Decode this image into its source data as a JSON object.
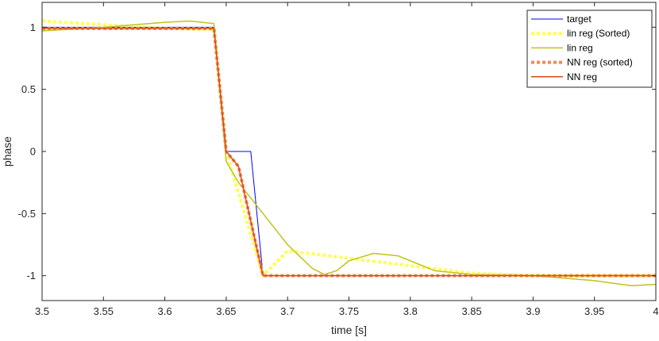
{
  "chart_data": {
    "type": "line",
    "xlabel": "time [s]",
    "ylabel": "phase",
    "xlim": [
      3.5,
      4.0
    ],
    "ylim": [
      -1.2,
      1.2
    ],
    "xticks": [
      3.5,
      3.55,
      3.6,
      3.65,
      3.7,
      3.75,
      3.8,
      3.85,
      3.9,
      3.95,
      4.0
    ],
    "xtick_labels": [
      "3.5",
      "3.55",
      "3.6",
      "3.65",
      "3.7",
      "3.75",
      "3.8",
      "3.85",
      "3.9",
      "3.95",
      "4"
    ],
    "yticks": [
      1,
      0.5,
      0,
      -0.5,
      -1
    ],
    "ytick_labels": [
      "1",
      "0.5",
      "0",
      "-0.5",
      "-1"
    ],
    "grid": false,
    "legend_position": "top-right",
    "series": [
      {
        "name": "target",
        "color": "#0000ff",
        "style": "solid",
        "width": 1,
        "x": [
          3.5,
          3.64,
          3.65,
          3.67,
          3.68,
          4.0
        ],
        "y": [
          1,
          1,
          0,
          0,
          -1,
          -1
        ]
      },
      {
        "name": "lin reg (Sorted)",
        "color": "#ffff50",
        "style": "dotted",
        "width": 4,
        "x": [
          3.5,
          3.55,
          3.6,
          3.64,
          3.65,
          3.68,
          3.7,
          3.75,
          3.8,
          3.85,
          3.9,
          3.95,
          4.0
        ],
        "y": [
          1.05,
          1.02,
          0.99,
          0.98,
          0.0,
          -1.0,
          -0.8,
          -0.86,
          -0.92,
          -0.98,
          -1.0,
          -1.0,
          -1.0
        ]
      },
      {
        "name": "lin reg",
        "color": "#c2c21a",
        "style": "solid",
        "width": 1.5,
        "x": [
          3.5,
          3.55,
          3.6,
          3.62,
          3.64,
          3.65,
          3.66,
          3.68,
          3.7,
          3.72,
          3.73,
          3.74,
          3.75,
          3.76,
          3.77,
          3.79,
          3.8,
          3.82,
          3.85,
          3.9,
          3.95,
          3.98,
          4.0
        ],
        "y": [
          0.97,
          1.0,
          1.04,
          1.05,
          1.03,
          -0.08,
          -0.25,
          -0.5,
          -0.75,
          -0.94,
          -0.99,
          -0.96,
          -0.88,
          -0.85,
          -0.82,
          -0.84,
          -0.88,
          -0.96,
          -0.99,
          -1.0,
          -1.04,
          -1.08,
          -1.07
        ]
      },
      {
        "name": "NN reg (sorted)",
        "color": "#f08a5a",
        "style": "dotted",
        "width": 4,
        "x": [
          3.5,
          3.64,
          3.65,
          3.66,
          3.68,
          4.0
        ],
        "y": [
          0.99,
          0.99,
          0.0,
          -0.12,
          -1.0,
          -1.0
        ]
      },
      {
        "name": "NN reg",
        "color": "#d94b1a",
        "style": "solid",
        "width": 1.5,
        "x": [
          3.5,
          3.64,
          3.65,
          3.66,
          3.68,
          4.0
        ],
        "y": [
          0.99,
          0.99,
          0.0,
          -0.12,
          -1.0,
          -1.0
        ]
      }
    ]
  }
}
